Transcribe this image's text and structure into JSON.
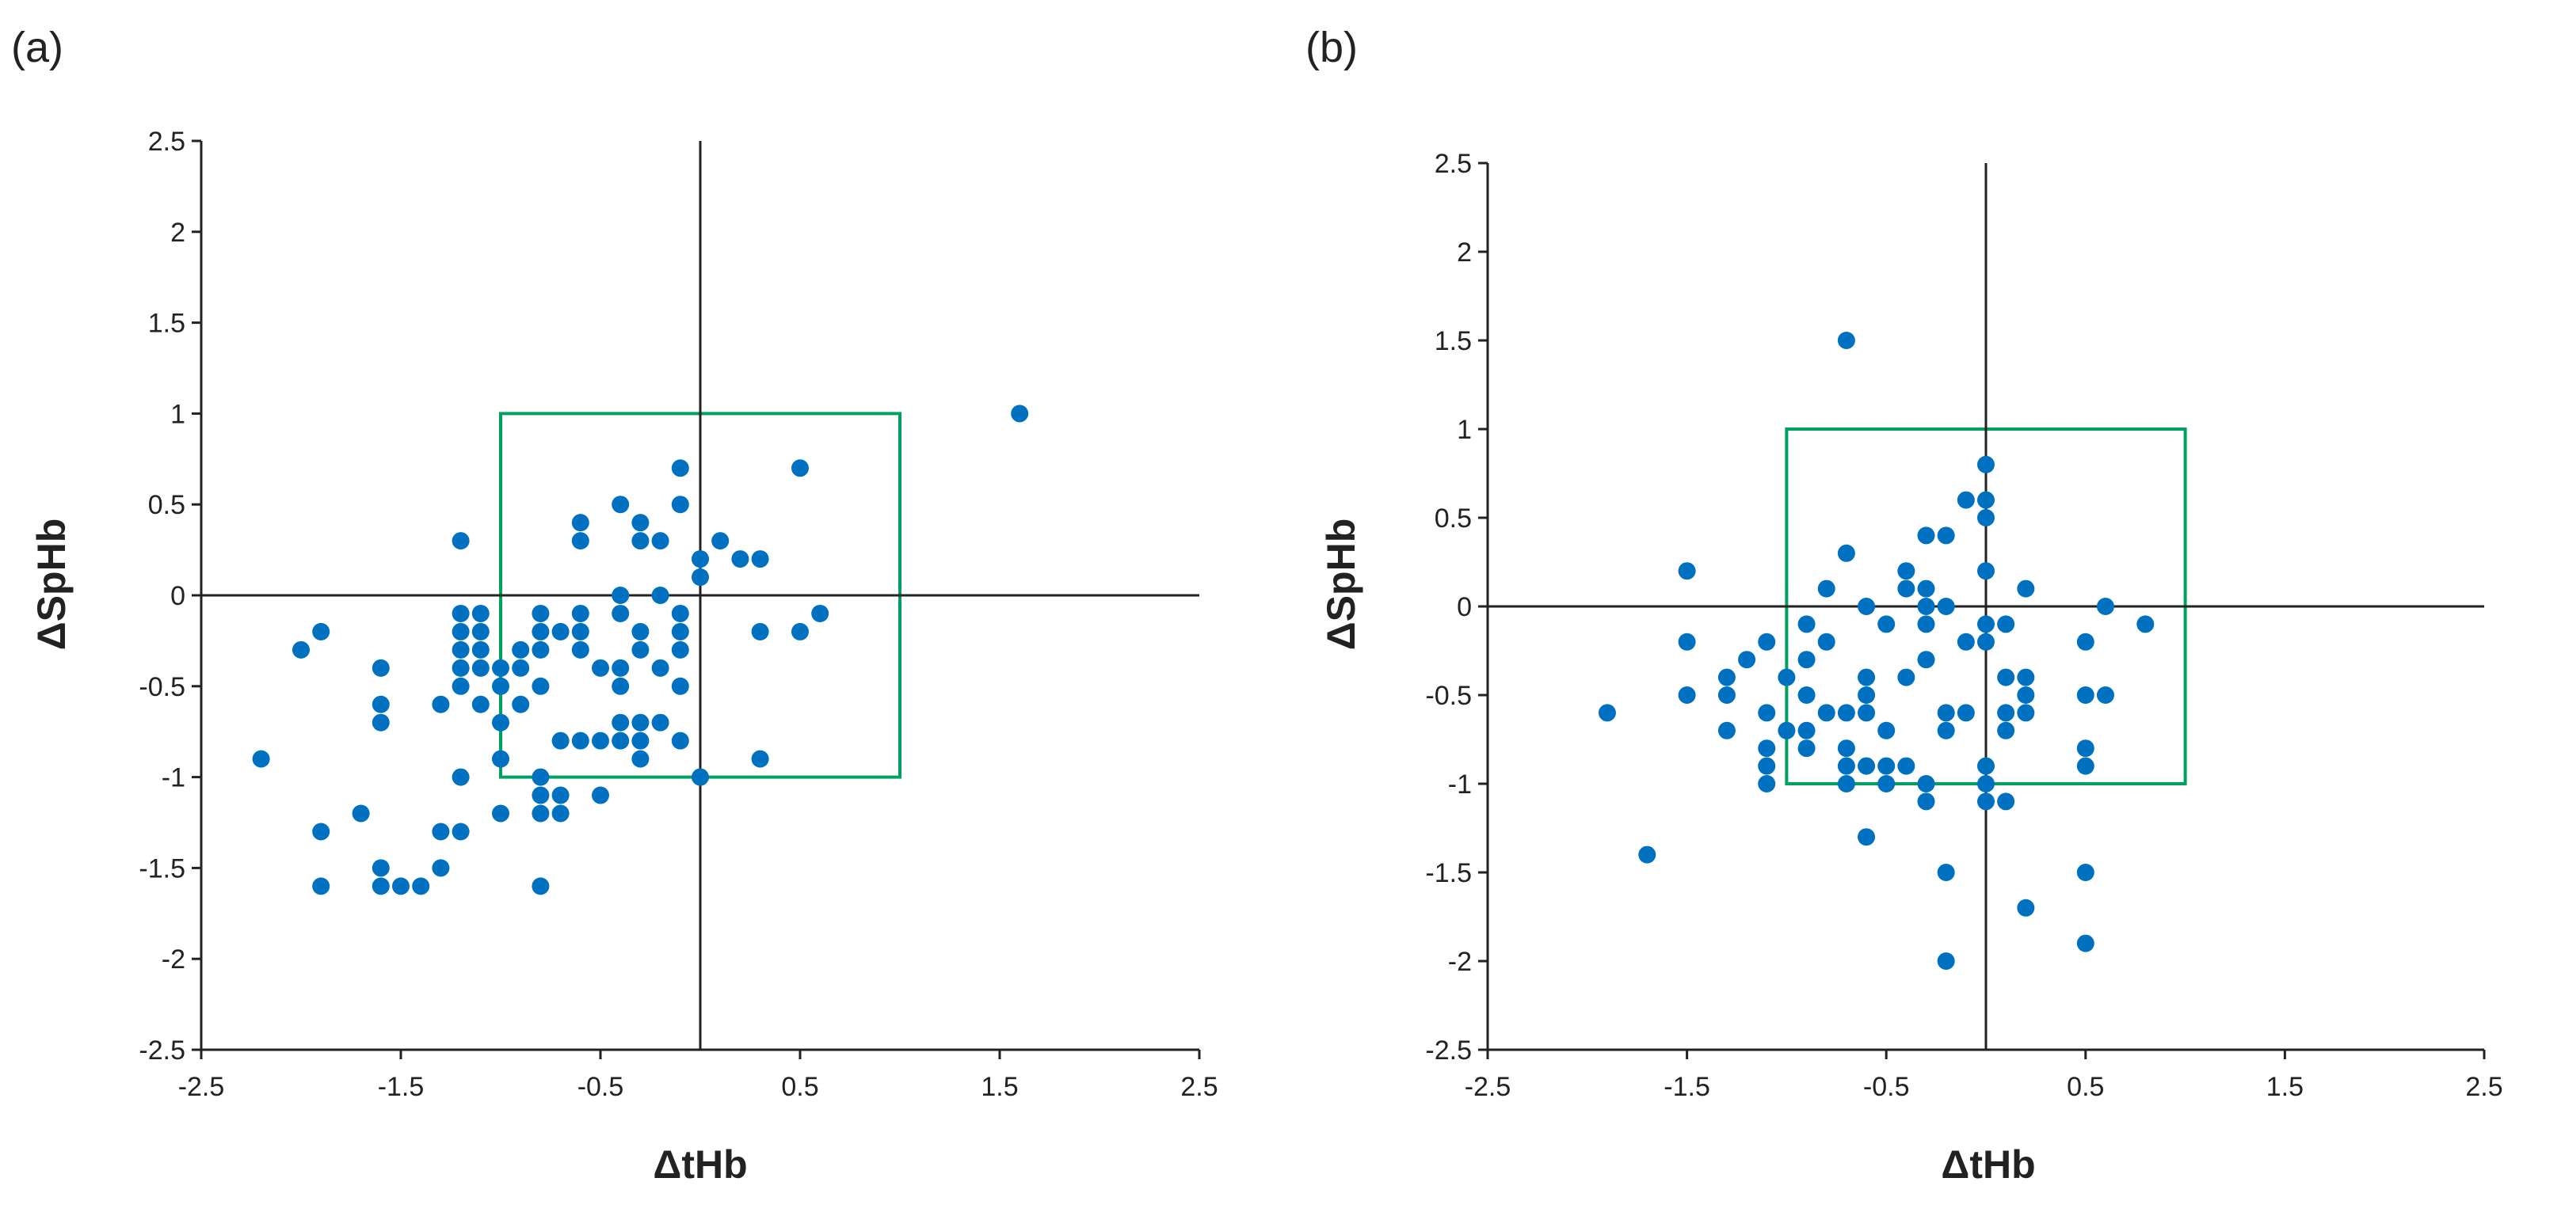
{
  "colors": {
    "point": "#0070C0",
    "box": "#00A060",
    "axis": "#222222"
  },
  "chart_data": [
    {
      "type": "scatter",
      "panel_label": "(a)",
      "xlabel": "ΔtHb",
      "ylabel": "ΔSpHb",
      "xlim": [
        -2.5,
        2.5
      ],
      "ylim": [
        -2.5,
        2.5
      ],
      "x_ticks": [
        -2.5,
        -1.5,
        -0.5,
        0.5,
        1.5,
        2.5
      ],
      "x_tick_labels": [
        "-2.5",
        "-1.5",
        "-0.5",
        "0.5",
        "1.5",
        "2.5"
      ],
      "y_ticks": [
        2.5,
        2,
        1.5,
        1,
        0.5,
        0,
        -0.5,
        -1,
        -1.5,
        -2,
        -2.5
      ],
      "y_tick_labels": [
        "2.5",
        "2",
        "1.5",
        "1",
        "0.5",
        "0",
        "-0.5",
        "-1",
        "-1.5",
        "-2",
        "-2.5"
      ],
      "reference_lines": {
        "x": 0,
        "y": 0
      },
      "agreement_box": {
        "x": [
          -1,
          1
        ],
        "y": [
          -1,
          1
        ]
      },
      "points": [
        [
          -2.2,
          -0.9
        ],
        [
          -2.0,
          -0.3
        ],
        [
          -1.9,
          -0.2
        ],
        [
          -1.9,
          -1.3
        ],
        [
          -1.9,
          -1.6
        ],
        [
          -1.7,
          -1.2
        ],
        [
          -1.6,
          -0.4
        ],
        [
          -1.6,
          -0.6
        ],
        [
          -1.6,
          -0.7
        ],
        [
          -1.6,
          -1.5
        ],
        [
          -1.6,
          -1.6
        ],
        [
          -1.5,
          -1.6
        ],
        [
          -1.4,
          -1.6
        ],
        [
          -1.3,
          -1.3
        ],
        [
          -1.3,
          -1.5
        ],
        [
          -1.3,
          -0.6
        ],
        [
          -1.2,
          0.3
        ],
        [
          -1.2,
          -0.1
        ],
        [
          -1.2,
          -0.2
        ],
        [
          -1.2,
          -0.3
        ],
        [
          -1.2,
          -0.4
        ],
        [
          -1.2,
          -0.5
        ],
        [
          -1.2,
          -1.0
        ],
        [
          -1.2,
          -1.3
        ],
        [
          -1.1,
          -0.1
        ],
        [
          -1.1,
          -0.2
        ],
        [
          -1.1,
          -0.3
        ],
        [
          -1.1,
          -0.4
        ],
        [
          -1.1,
          -0.6
        ],
        [
          -1.0,
          -0.4
        ],
        [
          -1.0,
          -0.5
        ],
        [
          -1.0,
          -0.7
        ],
        [
          -1.0,
          -0.9
        ],
        [
          -1.0,
          -1.2
        ],
        [
          -0.9,
          -0.3
        ],
        [
          -0.9,
          -0.4
        ],
        [
          -0.9,
          -0.6
        ],
        [
          -0.8,
          -0.1
        ],
        [
          -0.8,
          -0.2
        ],
        [
          -0.8,
          -0.3
        ],
        [
          -0.8,
          -0.5
        ],
        [
          -0.8,
          -1.0
        ],
        [
          -0.8,
          -1.1
        ],
        [
          -0.8,
          -1.2
        ],
        [
          -0.8,
          -1.6
        ],
        [
          -0.7,
          -0.2
        ],
        [
          -0.7,
          -0.8
        ],
        [
          -0.7,
          -1.1
        ],
        [
          -0.7,
          -1.2
        ],
        [
          -0.6,
          0.4
        ],
        [
          -0.6,
          0.3
        ],
        [
          -0.6,
          -0.1
        ],
        [
          -0.6,
          -0.2
        ],
        [
          -0.6,
          -0.3
        ],
        [
          -0.6,
          -0.8
        ],
        [
          -0.5,
          -0.4
        ],
        [
          -0.5,
          -0.8
        ],
        [
          -0.5,
          -1.1
        ],
        [
          -0.4,
          0.5
        ],
        [
          -0.4,
          0.0
        ],
        [
          -0.4,
          -0.1
        ],
        [
          -0.4,
          -0.4
        ],
        [
          -0.4,
          -0.5
        ],
        [
          -0.4,
          -0.7
        ],
        [
          -0.4,
          -0.8
        ],
        [
          -0.3,
          0.4
        ],
        [
          -0.3,
          0.3
        ],
        [
          -0.3,
          -0.2
        ],
        [
          -0.3,
          -0.3
        ],
        [
          -0.3,
          -0.7
        ],
        [
          -0.3,
          -0.8
        ],
        [
          -0.3,
          -0.9
        ],
        [
          -0.2,
          0.3
        ],
        [
          -0.2,
          0.0
        ],
        [
          -0.2,
          -0.4
        ],
        [
          -0.2,
          -0.7
        ],
        [
          -0.1,
          0.7
        ],
        [
          -0.1,
          0.5
        ],
        [
          -0.1,
          -0.1
        ],
        [
          -0.1,
          -0.2
        ],
        [
          -0.1,
          -0.3
        ],
        [
          -0.1,
          -0.5
        ],
        [
          -0.1,
          -0.8
        ],
        [
          0.0,
          0.2
        ],
        [
          0.0,
          0.1
        ],
        [
          0.0,
          -1.0
        ],
        [
          0.1,
          0.3
        ],
        [
          0.2,
          0.2
        ],
        [
          0.3,
          0.2
        ],
        [
          0.3,
          -0.2
        ],
        [
          0.3,
          -0.9
        ],
        [
          0.5,
          0.7
        ],
        [
          0.5,
          -0.2
        ],
        [
          0.6,
          -0.1
        ],
        [
          1.6,
          1.0
        ]
      ]
    },
    {
      "type": "scatter",
      "panel_label": "(b)",
      "xlabel": "ΔtHb",
      "ylabel": "ΔSpHb",
      "xlim": [
        -2.5,
        2.5
      ],
      "ylim": [
        -2.5,
        2.5
      ],
      "x_ticks": [
        -2.5,
        -1.5,
        -0.5,
        0.5,
        1.5,
        2.5
      ],
      "x_tick_labels": [
        "-2.5",
        "-1.5",
        "-0.5",
        "0.5",
        "1.5",
        "2.5"
      ],
      "y_ticks": [
        2.5,
        2,
        1.5,
        1,
        0.5,
        0,
        -0.5,
        -1,
        -1.5,
        -2,
        -2.5
      ],
      "y_tick_labels": [
        "2.5",
        "2",
        "1.5",
        "1",
        "0.5",
        "0",
        "-0.5",
        "-1",
        "-1.5",
        "-2",
        "-2.5"
      ],
      "reference_lines": {
        "x": 0,
        "y": 0
      },
      "agreement_box": {
        "x": [
          -1,
          1
        ],
        "y": [
          -1,
          1
        ]
      },
      "points": [
        [
          -1.9,
          -0.6
        ],
        [
          -1.7,
          -1.4
        ],
        [
          -1.5,
          0.2
        ],
        [
          -1.5,
          -0.2
        ],
        [
          -1.5,
          -0.5
        ],
        [
          -1.3,
          -0.4
        ],
        [
          -1.3,
          -0.5
        ],
        [
          -1.3,
          -0.7
        ],
        [
          -1.2,
          -0.3
        ],
        [
          -1.1,
          -0.2
        ],
        [
          -1.1,
          -0.6
        ],
        [
          -1.1,
          -0.8
        ],
        [
          -1.1,
          -0.9
        ],
        [
          -1.1,
          -1.0
        ],
        [
          -1.0,
          -0.4
        ],
        [
          -1.0,
          -0.7
        ],
        [
          -0.9,
          -0.1
        ],
        [
          -0.9,
          -0.3
        ],
        [
          -0.9,
          -0.5
        ],
        [
          -0.9,
          -0.7
        ],
        [
          -0.9,
          -0.8
        ],
        [
          -0.8,
          0.1
        ],
        [
          -0.8,
          -0.2
        ],
        [
          -0.8,
          -0.6
        ],
        [
          -0.7,
          1.5
        ],
        [
          -0.7,
          0.3
        ],
        [
          -0.7,
          -0.6
        ],
        [
          -0.7,
          -0.8
        ],
        [
          -0.7,
          -0.9
        ],
        [
          -0.7,
          -1.0
        ],
        [
          -0.6,
          0.0
        ],
        [
          -0.6,
          -0.4
        ],
        [
          -0.6,
          -0.5
        ],
        [
          -0.6,
          -0.6
        ],
        [
          -0.6,
          -0.9
        ],
        [
          -0.6,
          -1.3
        ],
        [
          -0.5,
          -0.1
        ],
        [
          -0.5,
          -0.7
        ],
        [
          -0.5,
          -0.9
        ],
        [
          -0.5,
          -1.0
        ],
        [
          -0.4,
          0.2
        ],
        [
          -0.4,
          0.1
        ],
        [
          -0.4,
          -0.4
        ],
        [
          -0.4,
          -0.9
        ],
        [
          -0.3,
          0.4
        ],
        [
          -0.3,
          0.1
        ],
        [
          -0.3,
          0.0
        ],
        [
          -0.3,
          -0.1
        ],
        [
          -0.3,
          -0.3
        ],
        [
          -0.3,
          -1.0
        ],
        [
          -0.3,
          -1.1
        ],
        [
          -0.2,
          0.4
        ],
        [
          -0.2,
          0.0
        ],
        [
          -0.2,
          -0.6
        ],
        [
          -0.2,
          -0.7
        ],
        [
          -0.2,
          -1.5
        ],
        [
          -0.2,
          -2.0
        ],
        [
          -0.1,
          0.6
        ],
        [
          -0.1,
          -0.2
        ],
        [
          -0.1,
          -0.6
        ],
        [
          0.0,
          0.8
        ],
        [
          0.0,
          0.6
        ],
        [
          0.0,
          0.5
        ],
        [
          0.0,
          0.2
        ],
        [
          0.0,
          -0.1
        ],
        [
          0.0,
          -0.2
        ],
        [
          0.0,
          -0.9
        ],
        [
          0.0,
          -1.0
        ],
        [
          0.0,
          -1.1
        ],
        [
          0.1,
          -0.1
        ],
        [
          0.1,
          -0.4
        ],
        [
          0.1,
          -0.6
        ],
        [
          0.1,
          -0.7
        ],
        [
          0.1,
          -1.1
        ],
        [
          0.2,
          0.1
        ],
        [
          0.2,
          -0.4
        ],
        [
          0.2,
          -0.5
        ],
        [
          0.2,
          -0.6
        ],
        [
          0.2,
          -1.7
        ],
        [
          0.5,
          -0.2
        ],
        [
          0.5,
          -0.5
        ],
        [
          0.5,
          -0.8
        ],
        [
          0.5,
          -0.9
        ],
        [
          0.5,
          -1.5
        ],
        [
          0.5,
          -1.9
        ],
        [
          0.6,
          0.0
        ],
        [
          0.6,
          -0.5
        ],
        [
          0.8,
          -0.1
        ]
      ]
    }
  ]
}
